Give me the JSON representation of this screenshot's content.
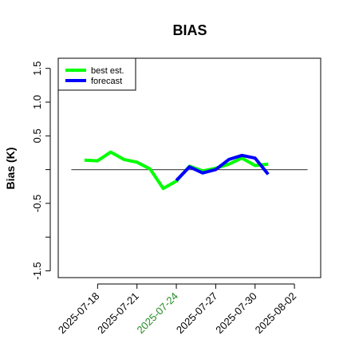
{
  "chart_data": {
    "type": "line",
    "title": "BIAS",
    "xlabel": "",
    "ylabel": "Bias (K)",
    "xlim": [
      "2025-07-15",
      "2025-08-04"
    ],
    "ylim": [
      -1.6,
      1.65
    ],
    "xticks": [
      {
        "date": "2025-07-18",
        "label": "2025-07-18",
        "color": "#000000"
      },
      {
        "date": "2025-07-21",
        "label": "2025-07-21",
        "color": "#000000"
      },
      {
        "date": "2025-07-24",
        "label": "2025-07-24",
        "color": "#228B22"
      },
      {
        "date": "2025-07-27",
        "label": "2025-07-27",
        "color": "#000000"
      },
      {
        "date": "2025-07-30",
        "label": "2025-07-30",
        "color": "#000000"
      },
      {
        "date": "2025-08-02",
        "label": "2025-08-02",
        "color": "#000000"
      }
    ],
    "yticks": [
      {
        "value": -1.5,
        "label": "-1.5"
      },
      {
        "value": -1.0,
        "label": ""
      },
      {
        "value": -0.5,
        "label": "-0.5"
      },
      {
        "value": 0.0,
        "label": ""
      },
      {
        "value": 0.5,
        "label": "0.5"
      },
      {
        "value": 1.0,
        "label": "1.0"
      },
      {
        "value": 1.5,
        "label": "1.5"
      }
    ],
    "reference_line": {
      "y": 0,
      "color": "#555555",
      "from": "2025-07-16",
      "to": "2025-08-03"
    },
    "series": [
      {
        "name": "best est.",
        "color": "#00ff00",
        "x": [
          "2025-07-17",
          "2025-07-18",
          "2025-07-19",
          "2025-07-20",
          "2025-07-21",
          "2025-07-22",
          "2025-07-23",
          "2025-07-24",
          "2025-07-25",
          "2025-07-26",
          "2025-07-27",
          "2025-07-28",
          "2025-07-29",
          "2025-07-30",
          "2025-07-31"
        ],
        "values": [
          0.14,
          0.13,
          0.26,
          0.15,
          0.11,
          0.01,
          -0.28,
          -0.17,
          0.05,
          -0.02,
          0.02,
          0.08,
          0.17,
          0.06,
          0.08
        ]
      },
      {
        "name": "forecast",
        "color": "#0000ff",
        "x": [
          "2025-07-24",
          "2025-07-25",
          "2025-07-26",
          "2025-07-27",
          "2025-07-28",
          "2025-07-29",
          "2025-07-30",
          "2025-07-31"
        ],
        "values": [
          -0.16,
          0.04,
          -0.05,
          0.0,
          0.15,
          0.21,
          0.17,
          -0.07
        ]
      }
    ],
    "legend": {
      "position": "top-left",
      "entries": [
        {
          "label": "best est.",
          "color": "#00ff00"
        },
        {
          "label": "forecast",
          "color": "#0000ff"
        }
      ]
    },
    "grid": false
  }
}
